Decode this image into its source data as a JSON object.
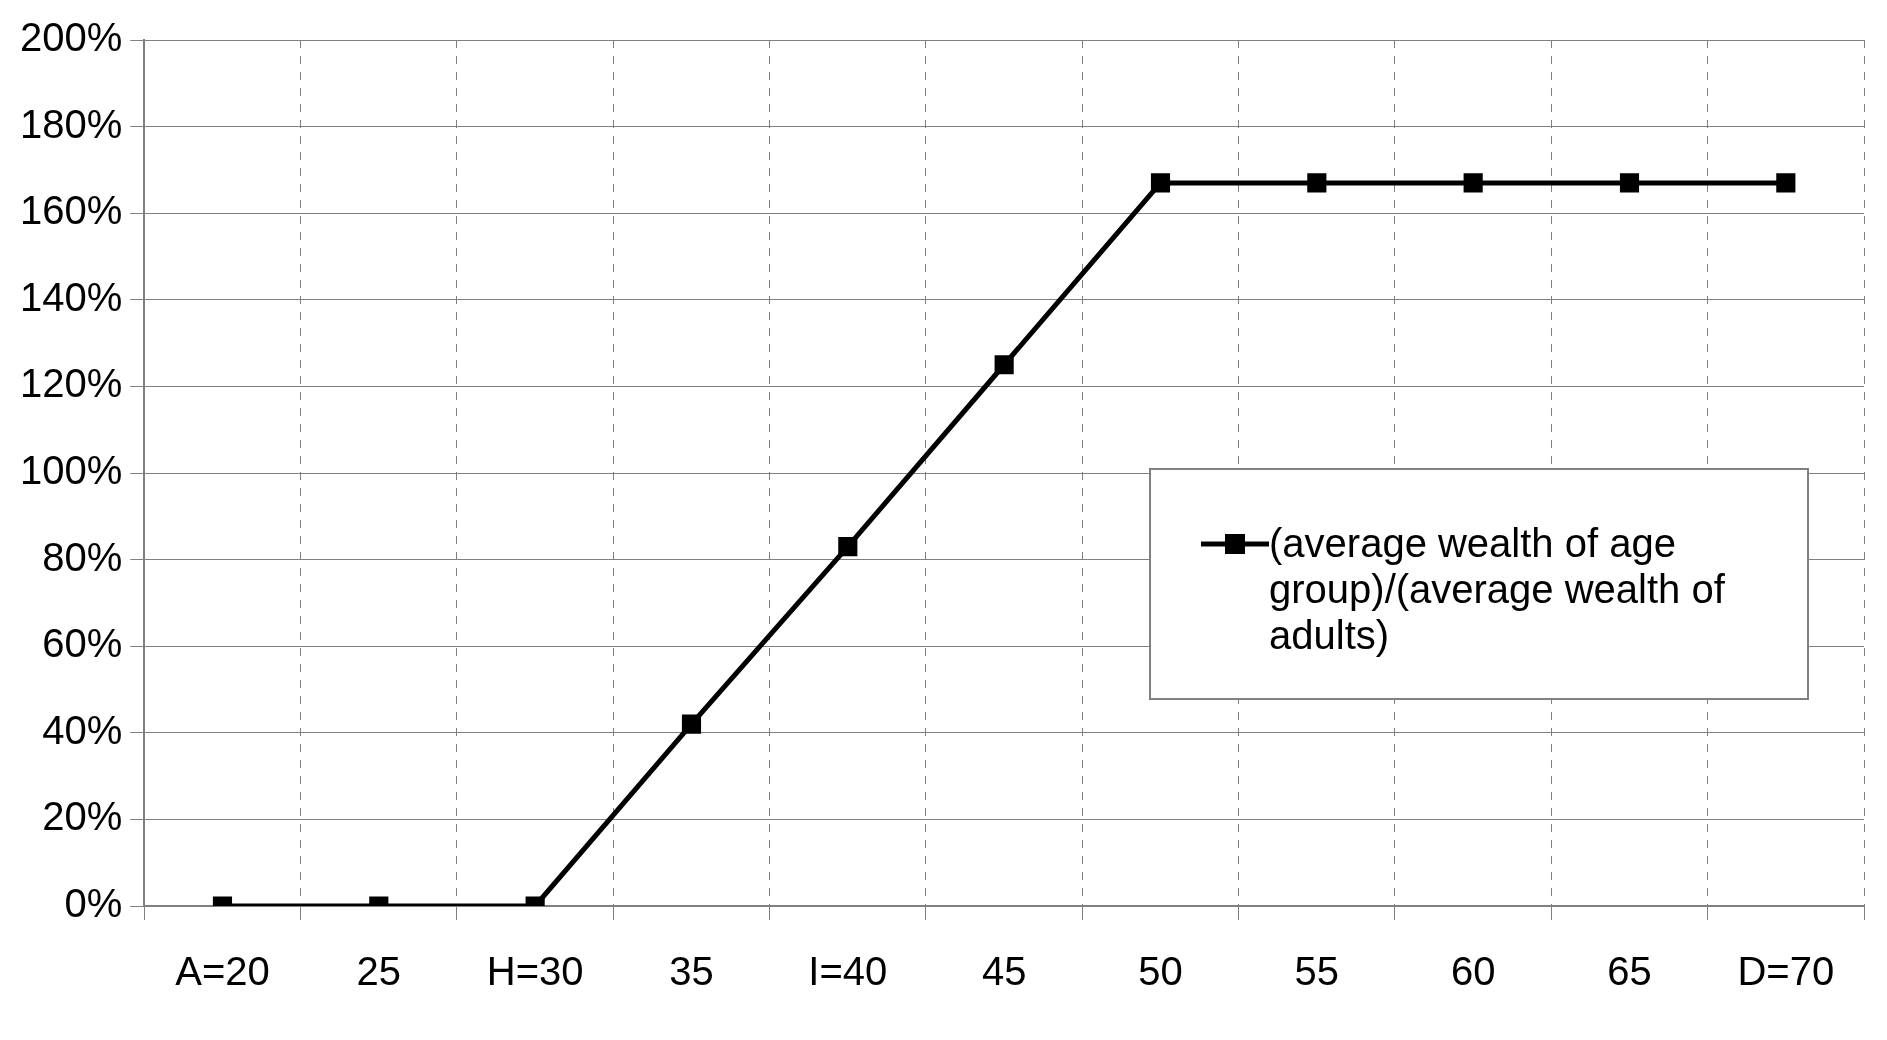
{
  "chart_data": {
    "type": "line",
    "categories": [
      "A=20",
      "25",
      "H=30",
      "35",
      "I=40",
      "45",
      "50",
      "55",
      "60",
      "65",
      "D=70"
    ],
    "series": [
      {
        "name": "(average wealth of age group)/(average wealth of adults)",
        "color": "#000000",
        "values": [
          0,
          0,
          0,
          42,
          83,
          125,
          167,
          167,
          167,
          167,
          167
        ]
      }
    ],
    "ylim": [
      0,
      200
    ],
    "yticks": [
      {
        "value": 0,
        "label": "0%"
      },
      {
        "value": 20,
        "label": "20%"
      },
      {
        "value": 40,
        "label": "40%"
      },
      {
        "value": 60,
        "label": "60%"
      },
      {
        "value": 80,
        "label": "80%"
      },
      {
        "value": 100,
        "label": "100%"
      },
      {
        "value": 120,
        "label": "120%"
      },
      {
        "value": 140,
        "label": "140%"
      },
      {
        "value": 160,
        "label": "160%"
      },
      {
        "value": 180,
        "label": "180%"
      },
      {
        "value": 200,
        "label": "200%"
      }
    ],
    "grid": true,
    "legend": "right",
    "marker": "square",
    "line_style": "solid"
  }
}
